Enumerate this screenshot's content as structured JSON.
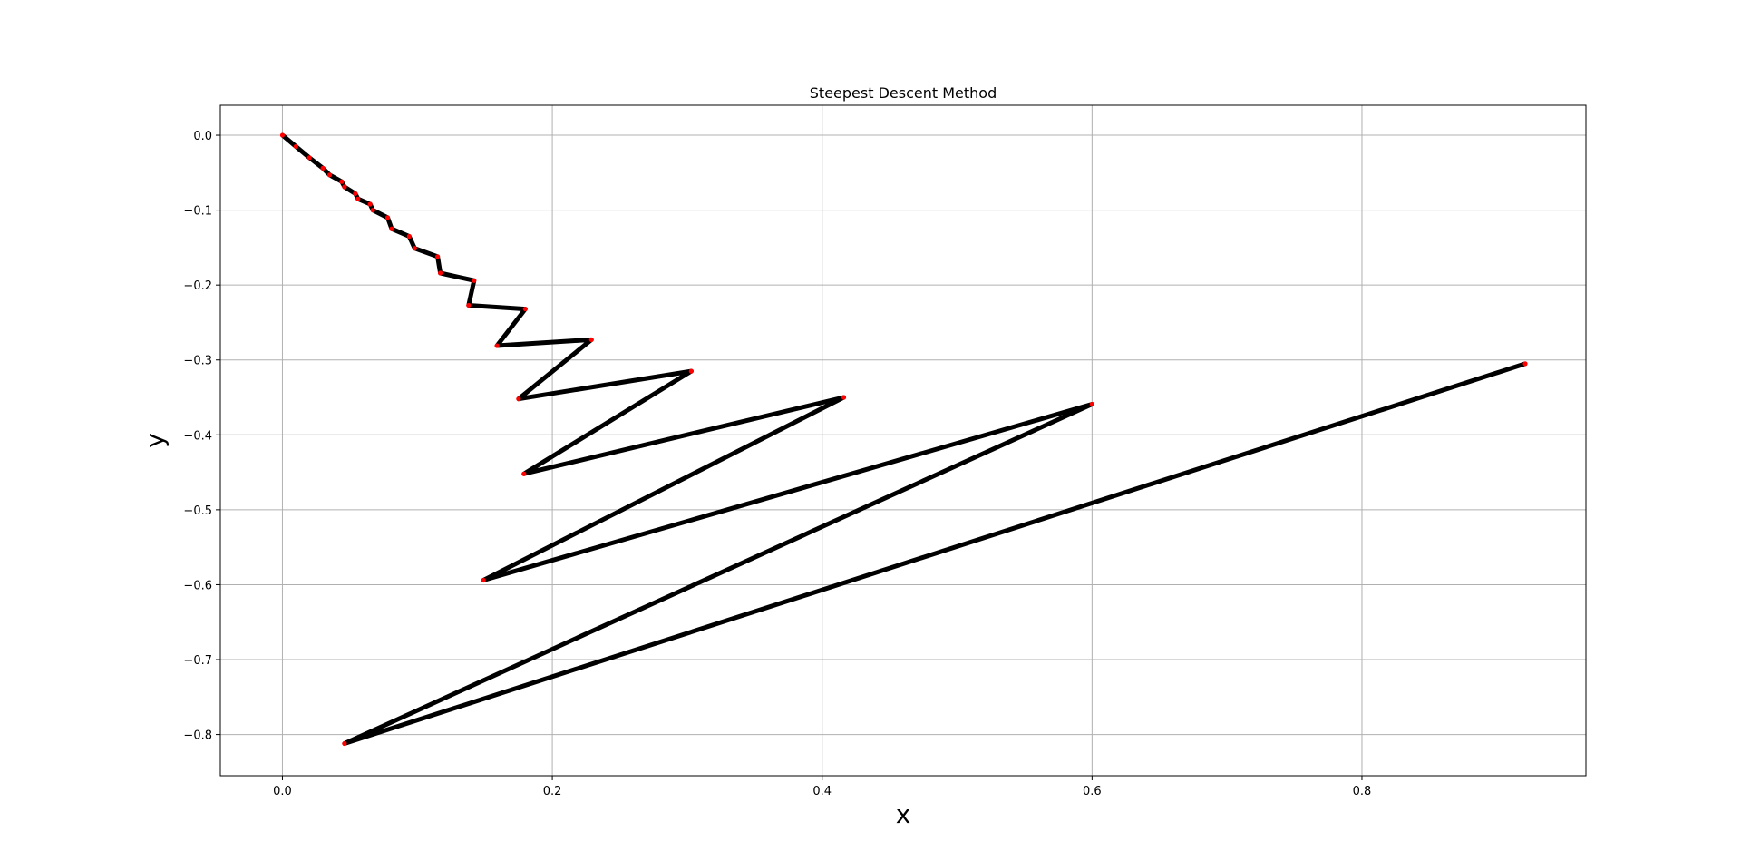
{
  "chart_data": {
    "type": "line",
    "title": "Steepest Descent Method",
    "xlabel": "x",
    "ylabel": "y",
    "xlim": [
      -0.046,
      0.966
    ],
    "ylim": [
      -0.855,
      0.04
    ],
    "xticks": [
      0.0,
      0.2,
      0.4,
      0.6,
      0.8
    ],
    "xtick_labels": [
      "0.0",
      "0.2",
      "0.4",
      "0.6",
      "0.8"
    ],
    "yticks": [
      0.0,
      -0.1,
      -0.2,
      -0.3,
      -0.4,
      -0.5,
      -0.6,
      -0.7,
      -0.8
    ],
    "ytick_labels": [
      "0.0",
      "−0.1",
      "−0.2",
      "−0.3",
      "−0.4",
      "−0.5",
      "−0.6",
      "−0.7",
      "−0.8"
    ],
    "grid": true,
    "series": [
      {
        "line_color": "#000000",
        "marker_color": "#ff0000",
        "x": [
          0.921,
          0.046,
          0.6,
          0.149,
          0.416,
          0.179,
          0.303,
          0.175,
          0.229,
          0.159,
          0.18,
          0.138,
          0.142,
          0.117,
          0.115,
          0.098,
          0.094,
          0.081,
          0.078,
          0.067,
          0.065,
          0.056,
          0.054,
          0.046,
          0.044,
          0.035,
          0.03,
          0.02,
          0.01,
          0.0
        ],
        "y": [
          -0.305,
          -0.812,
          -0.359,
          -0.594,
          -0.35,
          -0.452,
          -0.315,
          -0.352,
          -0.273,
          -0.281,
          -0.232,
          -0.227,
          -0.194,
          -0.184,
          -0.162,
          -0.151,
          -0.135,
          -0.125,
          -0.11,
          -0.1,
          -0.092,
          -0.085,
          -0.078,
          -0.069,
          -0.062,
          -0.053,
          -0.044,
          -0.03,
          -0.015,
          0.0
        ]
      }
    ]
  }
}
